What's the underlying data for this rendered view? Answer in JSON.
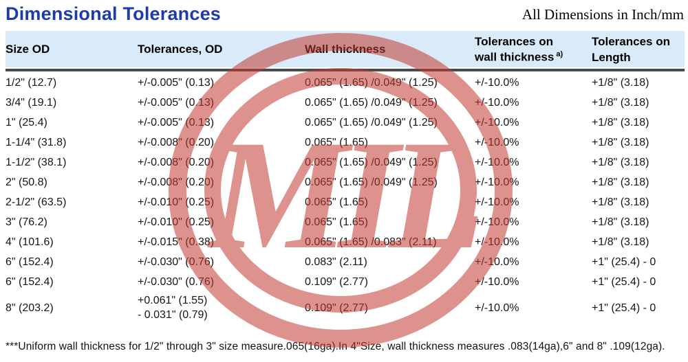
{
  "page": {
    "title": "Dimensional Tolerances",
    "units_note": "All Dimensions in Inch/mm",
    "footnote": "***Uniform wall thickness for 1/2\" through 3\" size measure.065(16ga).In 4\"Size, wall thickness measures .083(14ga),6\" and 8\" .109(12ga)."
  },
  "colors": {
    "title_blue": "#1e3ca8",
    "header_bg": "#d9eaf8",
    "header_rule": "#4b4b4b",
    "watermark_red": "#c23a32"
  },
  "watermark": {
    "text": "MIL",
    "color": "#c23a32",
    "opacity": 0.55
  },
  "table": {
    "headers": [
      {
        "lines": [
          "Size OD"
        ]
      },
      {
        "lines": [
          "Tolerances, OD"
        ]
      },
      {
        "lines": [
          "Wall thickness"
        ]
      },
      {
        "lines": [
          "Tolerances on",
          "wall thickness"
        ],
        "sup": "a)"
      },
      {
        "lines": [
          "Tolerances on",
          "Length"
        ]
      }
    ],
    "rows": [
      [
        "1/2\" (12.7)",
        "+/-0.005\" (0.13)",
        "0.065\" (1.65) /0.049\" (1.25)",
        "+/-10.0%",
        "+1/8\" (3.18)"
      ],
      [
        "3/4\" (19.1)",
        "+/-0.005\" (0.13)",
        "0.065\" (1.65) /0.049\" (1.25)",
        "+/-10.0%",
        "+1/8\" (3.18)"
      ],
      [
        "1\" (25.4)",
        "+/-0.005\" (0.13)",
        "0.065\" (1.65) /0.049\" (1.25)",
        "+/-10.0%",
        "+1/8\" (3.18)"
      ],
      [
        "1-1/4\" (31.8)",
        "+/-0.008\" (0.20)",
        "0.065\" (1.65)",
        "+/-10.0%",
        "+1/8\" (3.18)"
      ],
      [
        "1-1/2\" (38.1)",
        "+/-0.008\" (0.20)",
        "0.065\" (1.65) /0.049\" (1.25)",
        "+/-10.0%",
        "+1/8\" (3.18)"
      ],
      [
        "2\" (50.8)",
        "+/-0.008\" (0.20)",
        "0.065\" (1.65) /0.049\" (1.25)",
        "+/-10.0%",
        "+1/8\" (3.18)"
      ],
      [
        "2-1/2\" (63.5)",
        "+/-0.010\" (0.25)",
        "0.065\" (1.65)",
        "+/-10.0%",
        "+1/8\" (3.18)"
      ],
      [
        "3\" (76.2)",
        "+/-0.010\" (0.25)",
        "0.065\" (1.65)",
        "+/-10.0%",
        "+1/8\" (3.18)"
      ],
      [
        "4\" (101.6)",
        "+/-0.015\" (0.38)",
        "0.065\" (1.65) /0.083\" (2.11)",
        "+/-10.0%",
        "+1/8\" (3.18)"
      ],
      [
        "6\" (152.4)",
        "+/-0.030\" (0.76)",
        "0.083\" (2.11)",
        "+/-10.0%",
        "+1\" (25.4) - 0"
      ],
      [
        "6\" (152.4)",
        "+/-0.030\" (0.76)",
        "0.109\" (2.77)",
        "+/-10.0%",
        "+1\" (25.4) - 0"
      ],
      [
        "8\" (203.2)",
        [
          "+0.061\" (1.55)",
          "- 0.031\" (0.79)"
        ],
        "0.109\" (2.77)",
        "+/-10.0%",
        "+1\" (25.4) - 0"
      ]
    ]
  }
}
